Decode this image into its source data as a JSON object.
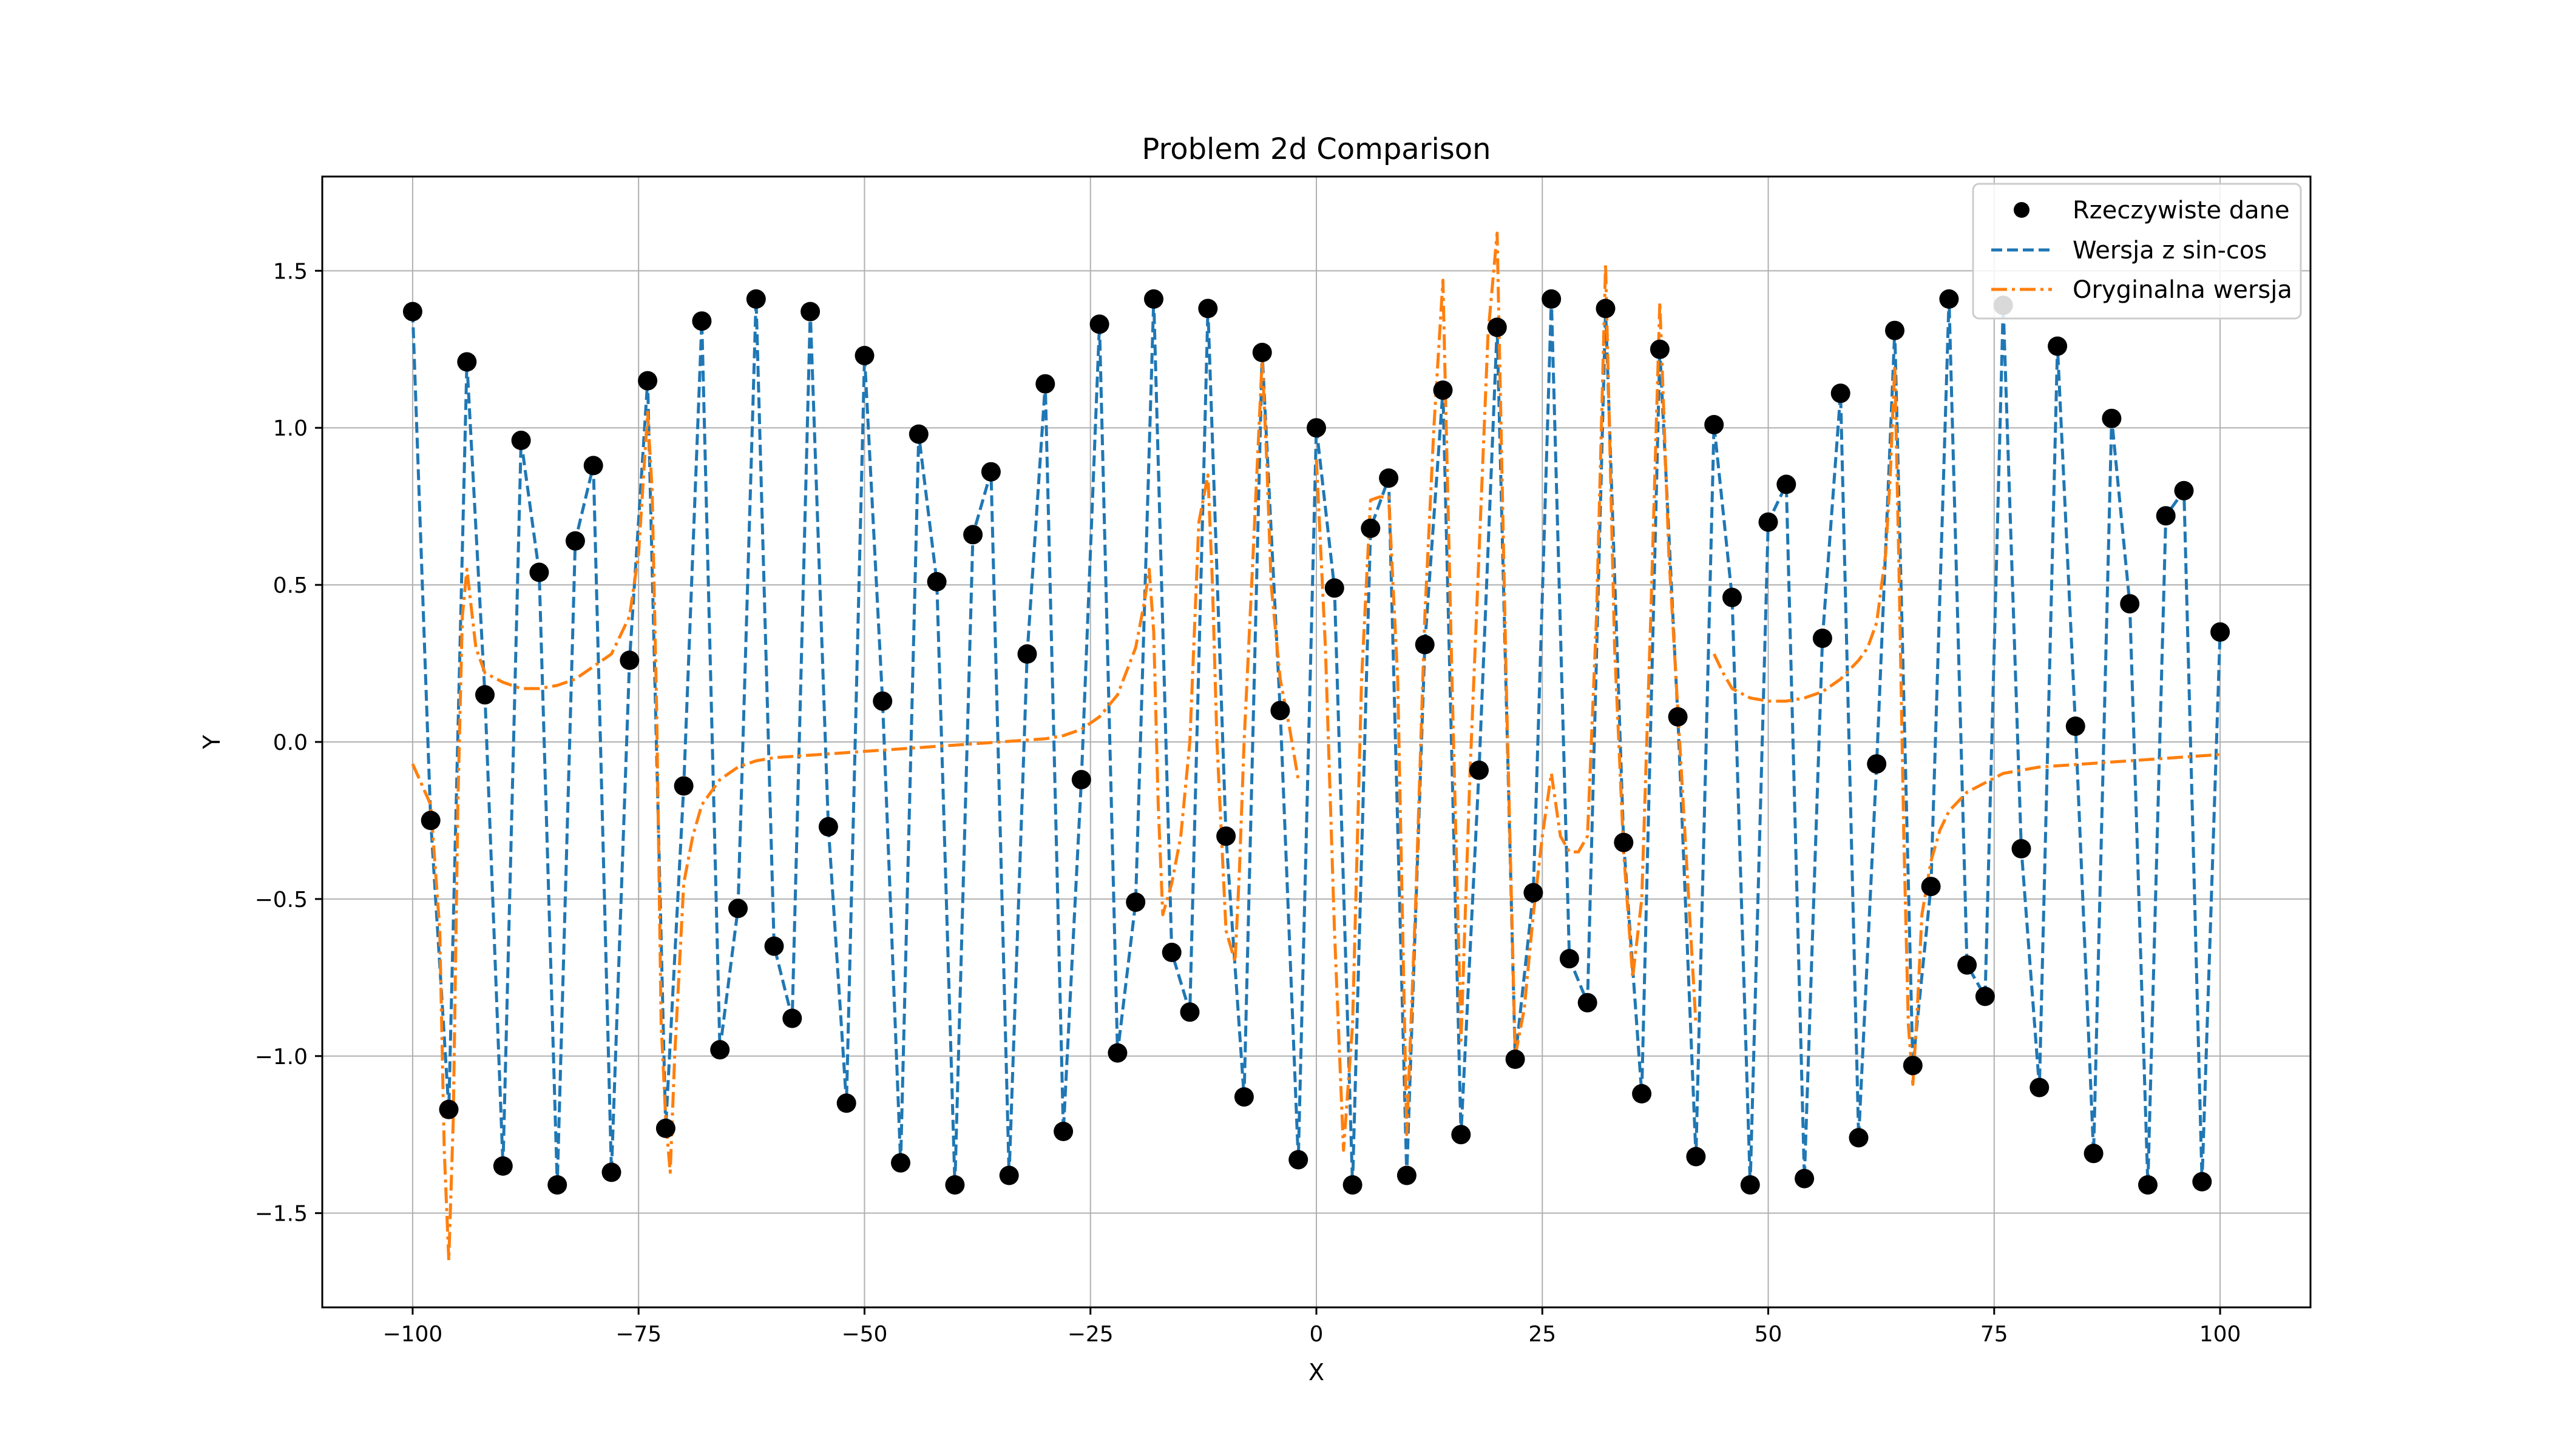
{
  "chart_data": {
    "type": "line",
    "title": "Problem 2d Comparison",
    "xlabel": "X",
    "ylabel": "Y",
    "xlim": [
      -110,
      110
    ],
    "ylim": [
      -1.8,
      1.8
    ],
    "xticks": [
      -100,
      -75,
      -50,
      -25,
      0,
      25,
      50,
      75,
      100
    ],
    "xtick_labels": [
      "−100",
      "−75",
      "−50",
      "−25",
      "0",
      "25",
      "50",
      "75",
      "100"
    ],
    "yticks": [
      -1.5,
      -1.0,
      -0.5,
      0.0,
      0.5,
      1.0,
      1.5
    ],
    "ytick_labels": [
      "−1.5",
      "−1.0",
      "−0.5",
      "0.0",
      "0.5",
      "1.0",
      "1.5"
    ],
    "grid": true,
    "legend_position": "top-right",
    "x": [
      -100,
      -98,
      -96,
      -94,
      -92,
      -90,
      -88,
      -86,
      -84,
      -82,
      -80,
      -78,
      -76,
      -74,
      -72,
      -70,
      -68,
      -66,
      -64,
      -62,
      -60,
      -58,
      -56,
      -54,
      -52,
      -50,
      -48,
      -46,
      -44,
      -42,
      -40,
      -38,
      -36,
      -34,
      -32,
      -30,
      -28,
      -26,
      -24,
      -22,
      -20,
      -18,
      -16,
      -14,
      -12,
      -10,
      -8,
      -6,
      -4,
      -2,
      0,
      2,
      4,
      6,
      8,
      10,
      12,
      14,
      16,
      18,
      20,
      22,
      24,
      26,
      28,
      30,
      32,
      34,
      36,
      38,
      40,
      42,
      44,
      46,
      48,
      50,
      52,
      54,
      56,
      58,
      60,
      62,
      64,
      66,
      68,
      70,
      72,
      74,
      76,
      78,
      80,
      82,
      84,
      86,
      88,
      90,
      92,
      94,
      96,
      98,
      100
    ],
    "series": [
      {
        "name": "Rzeczywiste dane",
        "style": "markers",
        "color": "#000000",
        "y": [
          1.37,
          -0.25,
          -1.17,
          1.21,
          0.15,
          -1.35,
          0.96,
          0.54,
          -1.41,
          0.64,
          0.88,
          -1.37,
          0.26,
          1.15,
          -1.23,
          -0.14,
          1.34,
          -0.98,
          -0.53,
          1.41,
          -0.65,
          -0.88,
          1.37,
          -0.27,
          -1.15,
          1.23,
          0.13,
          -1.34,
          0.98,
          0.51,
          -1.41,
          0.66,
          0.86,
          -1.38,
          0.28,
          1.14,
          -1.24,
          -0.12,
          1.33,
          -0.99,
          -0.51,
          1.41,
          -0.67,
          -0.86,
          1.38,
          -0.3,
          -1.13,
          1.24,
          0.1,
          -1.33,
          1.0,
          0.49,
          -1.41,
          0.68,
          0.84,
          -1.38,
          0.31,
          1.12,
          -1.25,
          -0.09,
          1.32,
          -1.01,
          -0.48,
          1.41,
          -0.69,
          -0.83,
          1.38,
          -0.32,
          -1.12,
          1.25,
          0.08,
          -1.32,
          1.01,
          0.46,
          -1.41,
          0.7,
          0.82,
          -1.39,
          0.33,
          1.11,
          -1.26,
          -0.07,
          1.31,
          -1.03,
          -0.46,
          1.41,
          -0.71,
          -0.81,
          1.39,
          -0.34,
          -1.1,
          1.26,
          0.05,
          -1.31,
          1.03,
          0.44,
          -1.41,
          0.72,
          0.8,
          -1.4,
          0.35
        ]
      },
      {
        "name": "Wersja z sin-cos",
        "style": "dashed",
        "color": "#1f77b4",
        "y": [
          1.37,
          -0.25,
          -1.17,
          1.21,
          0.15,
          -1.35,
          0.96,
          0.54,
          -1.41,
          0.64,
          0.88,
          -1.37,
          0.26,
          1.15,
          -1.23,
          -0.14,
          1.34,
          -0.98,
          -0.53,
          1.41,
          -0.65,
          -0.88,
          1.37,
          -0.27,
          -1.15,
          1.23,
          0.13,
          -1.34,
          0.98,
          0.51,
          -1.41,
          0.66,
          0.86,
          -1.38,
          0.28,
          1.14,
          -1.24,
          -0.12,
          1.33,
          -0.99,
          -0.51,
          1.41,
          -0.67,
          -0.86,
          1.38,
          -0.3,
          -1.13,
          1.24,
          0.1,
          -1.33,
          1.0,
          0.49,
          -1.41,
          0.68,
          0.84,
          -1.38,
          0.31,
          1.12,
          -1.25,
          -0.09,
          1.32,
          -1.01,
          -0.48,
          1.41,
          -0.69,
          -0.83,
          1.38,
          -0.32,
          -1.12,
          1.25,
          0.08,
          -1.32,
          1.01,
          0.46,
          -1.41,
          0.7,
          0.82,
          -1.39,
          0.33,
          1.11,
          -1.26,
          -0.07,
          1.31,
          -1.03,
          -0.46,
          1.41,
          -0.71,
          -0.81,
          1.39,
          -0.34,
          -1.1,
          1.26,
          0.05,
          -1.31,
          1.03,
          0.44,
          -1.41,
          0.72,
          0.8,
          -1.4,
          0.35
        ]
      },
      {
        "name": "Oryginalna wersja",
        "style": "dashdot",
        "color": "#ff7f0e",
        "segments": [
          {
            "x": [
              -100,
              -98,
              -97,
              -96.5,
              -96,
              -95.5,
              -95,
              -94.5,
              -94,
              -93,
              -92,
              -90,
              -88,
              -86,
              -84,
              -82,
              -80,
              -78,
              -76,
              -75,
              -74,
              -73.5,
              -73,
              -72.5,
              -72,
              -71.5,
              -71,
              -70,
              -69,
              -68,
              -66,
              -64,
              -62,
              -60,
              -55,
              -50,
              -45,
              -40,
              -35,
              -30,
              -28,
              -26,
              -24,
              -22,
              -20,
              -19,
              -18.5,
              -18,
              -17.5,
              -17,
              -16,
              -15,
              -14,
              -13,
              -12,
              -11.5,
              -11,
              -10,
              -9,
              -8.5,
              -8,
              -7,
              -6,
              -5.5,
              -5,
              -4,
              -3,
              -2
            ],
            "y": [
              -0.07,
              -0.2,
              -0.6,
              -1.3,
              -1.65,
              -1.2,
              -0.2,
              0.4,
              0.55,
              0.3,
              0.22,
              0.19,
              0.17,
              0.17,
              0.18,
              0.2,
              0.24,
              0.28,
              0.4,
              0.6,
              1.05,
              0.8,
              0.1,
              -0.9,
              -1.2,
              -1.37,
              -1.0,
              -0.45,
              -0.3,
              -0.2,
              -0.12,
              -0.08,
              -0.06,
              -0.05,
              -0.04,
              -0.03,
              -0.02,
              -0.01,
              0.0,
              0.01,
              0.02,
              0.04,
              0.08,
              0.15,
              0.3,
              0.45,
              0.55,
              0.35,
              -0.2,
              -0.55,
              -0.45,
              -0.3,
              0.0,
              0.7,
              0.85,
              0.5,
              0.0,
              -0.6,
              -0.7,
              -0.4,
              0.0,
              0.6,
              1.22,
              0.9,
              0.5,
              0.2,
              0.05,
              -0.12
            ]
          },
          {
            "x": [
              0,
              1,
              2,
              3,
              4,
              5,
              6,
              7,
              8,
              9,
              10,
              11,
              12,
              13,
              14,
              15,
              16,
              17,
              18,
              19,
              20,
              21,
              22,
              23,
              24,
              25,
              26,
              27,
              28,
              29,
              30,
              31,
              32,
              33,
              34,
              35,
              36,
              37,
              38,
              39,
              40,
              41,
              42
            ],
            "y": [
              0.9,
              0.3,
              -0.6,
              -1.3,
              -0.9,
              0.2,
              0.77,
              0.78,
              0.78,
              0.2,
              -1.25,
              -0.5,
              0.4,
              1.0,
              1.47,
              0.2,
              -0.95,
              -0.1,
              0.6,
              1.3,
              1.62,
              0.2,
              -1.0,
              -0.85,
              -0.55,
              -0.3,
              -0.1,
              -0.3,
              -0.35,
              -0.35,
              -0.3,
              0.4,
              1.52,
              0.3,
              -0.35,
              -0.75,
              -0.5,
              0.4,
              1.4,
              0.6,
              0.1,
              -0.4,
              -0.9
            ]
          },
          {
            "x": [
              44,
              45,
              46,
              48,
              50,
              52,
              54,
              56,
              58,
              60,
              61,
              62,
              63,
              63.5,
              64,
              64.5,
              65,
              65.5,
              66,
              66.5,
              67,
              68,
              69,
              70,
              72,
              74,
              76,
              78,
              80,
              85,
              90,
              95,
              100
            ],
            "y": [
              0.28,
              0.22,
              0.17,
              0.14,
              0.13,
              0.13,
              0.14,
              0.16,
              0.2,
              0.26,
              0.3,
              0.38,
              0.6,
              0.85,
              1.2,
              0.5,
              -0.3,
              -0.9,
              -1.09,
              -0.85,
              -0.55,
              -0.38,
              -0.28,
              -0.22,
              -0.16,
              -0.13,
              -0.1,
              -0.09,
              -0.08,
              -0.07,
              -0.06,
              -0.05,
              -0.04
            ]
          }
        ]
      }
    ]
  }
}
